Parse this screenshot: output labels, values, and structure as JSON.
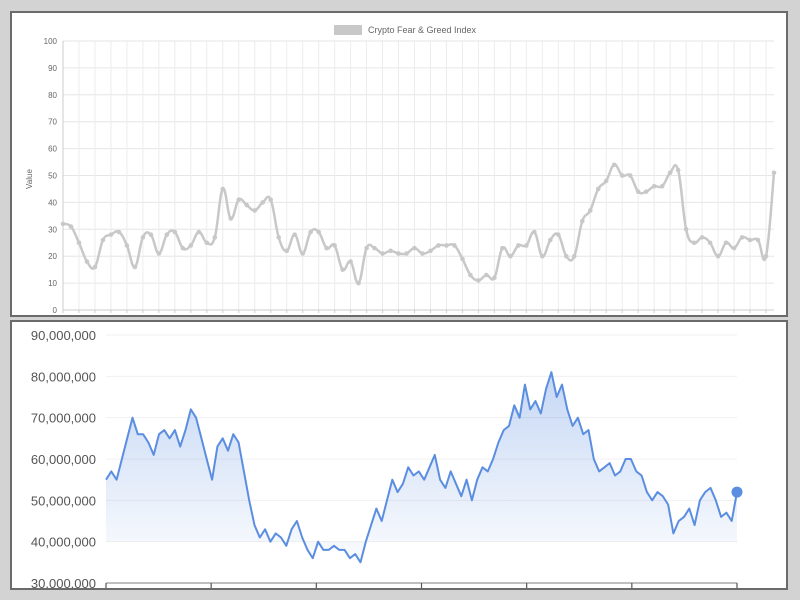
{
  "chart_data": [
    {
      "type": "line",
      "title": "",
      "legend": {
        "label": "Crypto Fear & Greed Index",
        "placement": "top-center"
      },
      "ylabel": "Value",
      "xlabel": "",
      "ylim": [
        0,
        100
      ],
      "yticks": [
        "0",
        "10",
        "20",
        "30",
        "40",
        "50",
        "60",
        "70",
        "80",
        "90",
        "100"
      ],
      "grid": true,
      "color": "#c8c8c8",
      "series": [
        {
          "name": "Crypto Fear & Greed Index",
          "values": [
            32,
            31,
            25,
            18,
            16,
            26,
            28,
            29,
            24,
            16,
            27,
            28,
            21,
            28,
            29,
            23,
            24,
            29,
            25,
            27,
            45,
            34,
            41,
            39,
            37,
            40,
            41,
            27,
            22,
            28,
            21,
            29,
            29,
            23,
            24,
            15,
            18,
            10,
            23,
            23,
            21,
            22,
            21,
            21,
            23,
            21,
            22,
            24,
            24,
            24,
            19,
            13,
            11,
            13,
            12,
            23,
            20,
            24,
            24,
            29,
            20,
            26,
            28,
            20,
            20,
            33,
            37,
            45,
            48,
            54,
            50,
            50,
            44,
            44,
            46,
            46,
            51,
            52,
            30,
            25,
            27,
            25,
            20,
            25,
            23,
            27,
            26,
            26,
            20,
            51
          ]
        }
      ]
    },
    {
      "type": "area",
      "title": "",
      "xlabel": "",
      "ylabel": "",
      "ylim": [
        30000000,
        90000000
      ],
      "yticks": [
        "30,000,000",
        "40,000,000",
        "50,000,000",
        "60,000,000",
        "70,000,000",
        "80,000,000",
        "90,000,000"
      ],
      "grid": true,
      "color": "#5b8ee0",
      "series": [
        {
          "name": "",
          "values": [
            55000000,
            57000000,
            55000000,
            60000000,
            65000000,
            70000000,
            66000000,
            66000000,
            64000000,
            61000000,
            66000000,
            67000000,
            65000000,
            67000000,
            63000000,
            67000000,
            72000000,
            70000000,
            65000000,
            60000000,
            55000000,
            63000000,
            65000000,
            62000000,
            66000000,
            64000000,
            57000000,
            50000000,
            44000000,
            41000000,
            43000000,
            40000000,
            42000000,
            41000000,
            39000000,
            43000000,
            45000000,
            41000000,
            38000000,
            36000000,
            40000000,
            38000000,
            38000000,
            39000000,
            38000000,
            38000000,
            36000000,
            37000000,
            35000000,
            40000000,
            44000000,
            48000000,
            45000000,
            50000000,
            55000000,
            52000000,
            54000000,
            58000000,
            56000000,
            57000000,
            55000000,
            58000000,
            61000000,
            55000000,
            53000000,
            57000000,
            54000000,
            51000000,
            55000000,
            50000000,
            55000000,
            58000000,
            57000000,
            60000000,
            64000000,
            67000000,
            68000000,
            73000000,
            70000000,
            78000000,
            72000000,
            74000000,
            71000000,
            77000000,
            81000000,
            75000000,
            78000000,
            72000000,
            68000000,
            70000000,
            66000000,
            67000000,
            60000000,
            57000000,
            58000000,
            59000000,
            56000000,
            57000000,
            60000000,
            60000000,
            57000000,
            56000000,
            52000000,
            50000000,
            52000000,
            51000000,
            49000000,
            42000000,
            45000000,
            46000000,
            48000000,
            44000000,
            50000000,
            52000000,
            53000000,
            50000000,
            46000000,
            47000000,
            45000000,
            52000000
          ]
        }
      ]
    }
  ]
}
